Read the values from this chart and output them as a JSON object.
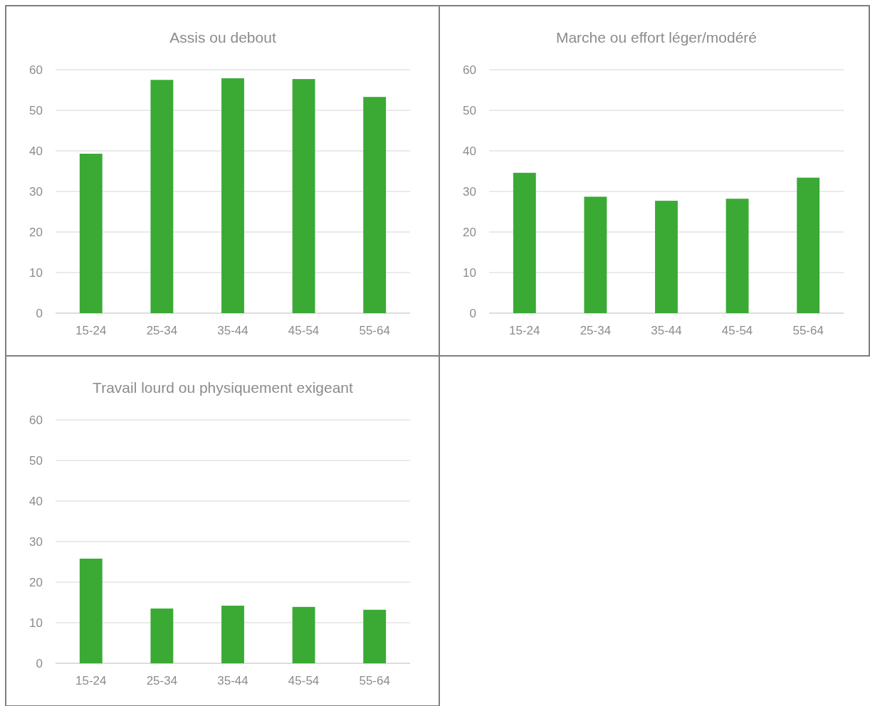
{
  "chart_data": [
    {
      "type": "bar",
      "title": "Assis ou debout",
      "categories": [
        "15-24",
        "25-34",
        "35-44",
        "45-54",
        "55-64"
      ],
      "values": [
        39.3,
        57.5,
        57.9,
        57.7,
        53.3
      ],
      "color": "#3aaa35",
      "ylim": [
        0,
        60
      ],
      "yticks": [
        0,
        10,
        20,
        30,
        40,
        50,
        60
      ],
      "grid": "y"
    },
    {
      "type": "bar",
      "title": "Marche ou effort léger/modéré",
      "categories": [
        "15-24",
        "25-34",
        "35-44",
        "45-54",
        "55-64"
      ],
      "values": [
        34.6,
        28.7,
        27.7,
        28.2,
        33.4
      ],
      "color": "#3aaa35",
      "ylim": [
        0,
        60
      ],
      "yticks": [
        0,
        10,
        20,
        30,
        40,
        50,
        60
      ],
      "grid": "y"
    },
    {
      "type": "bar",
      "title": "Travail lourd ou physiquement exigeant",
      "categories": [
        "15-24",
        "25-34",
        "35-44",
        "45-54",
        "55-64"
      ],
      "values": [
        25.8,
        13.5,
        14.2,
        13.9,
        13.2
      ],
      "color": "#3aaa35",
      "ylim": [
        0,
        60
      ],
      "yticks": [
        0,
        10,
        20,
        30,
        40,
        50,
        60
      ],
      "grid": "y"
    }
  ]
}
